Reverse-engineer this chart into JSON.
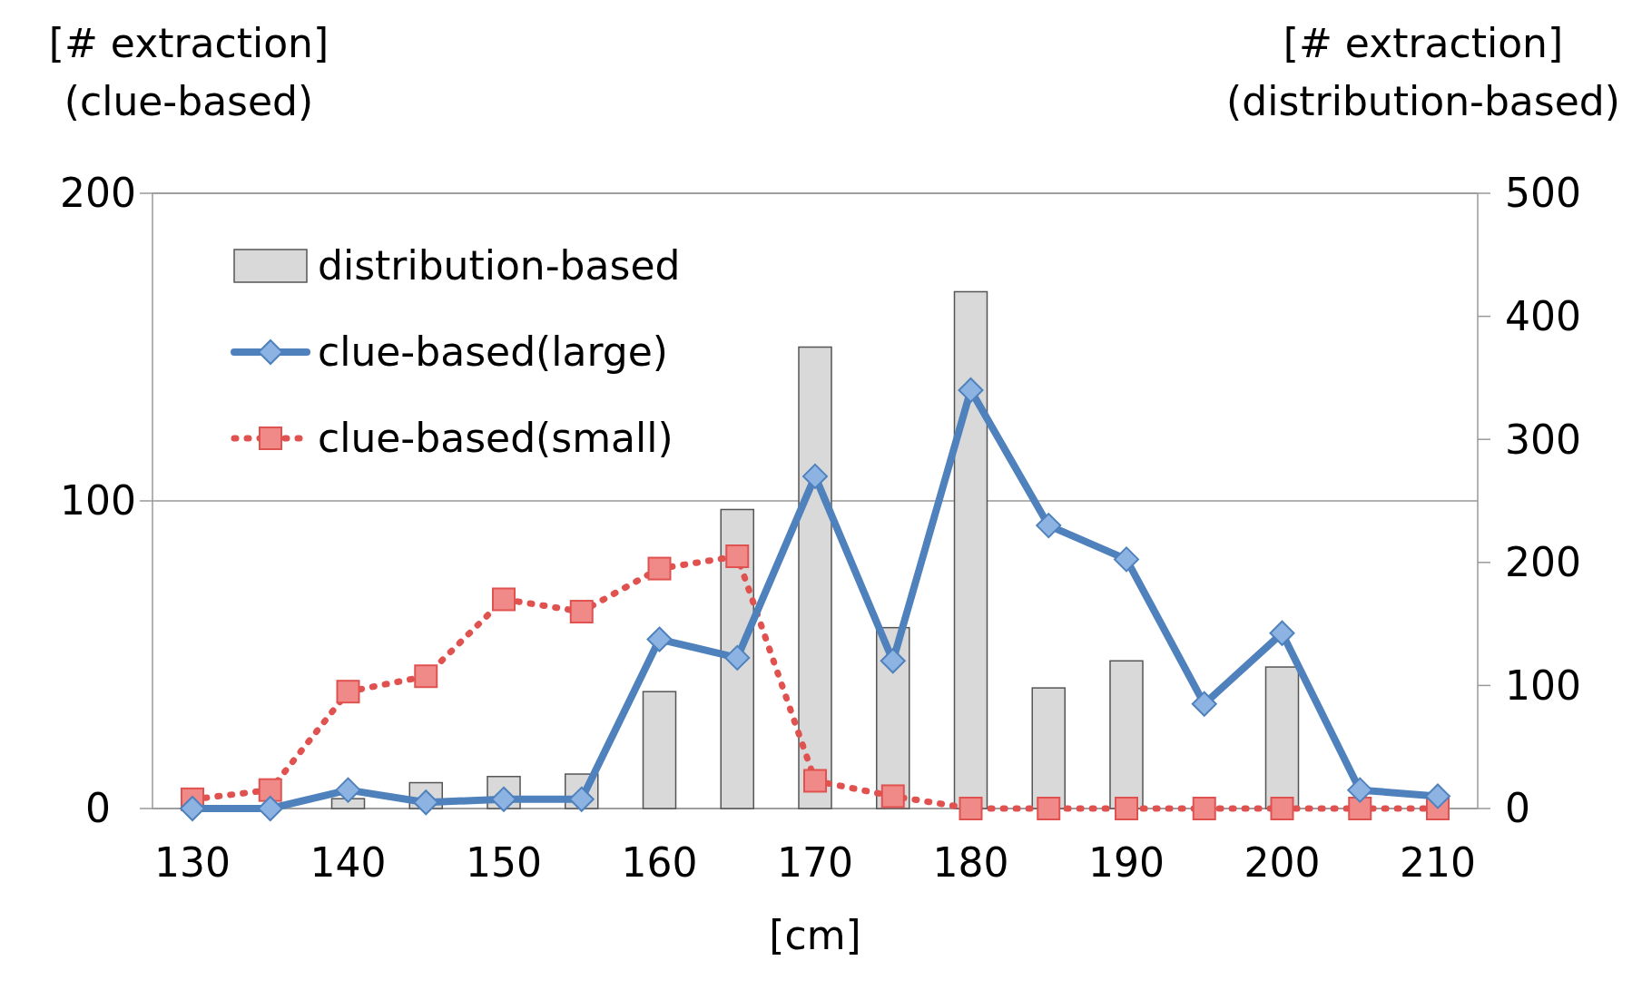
{
  "chart_data": {
    "type": "bar",
    "xlabel": "[cm]",
    "ylabel": "[# extraction]\n(clue-based)",
    "y2label": "[# extraction]\n(distribution-based)",
    "categories": [
      "130",
      null,
      "140",
      null,
      "150",
      null,
      "160",
      null,
      "170",
      null,
      "180",
      null,
      "190",
      null,
      "200",
      null,
      "210"
    ],
    "ylim": [
      0,
      200
    ],
    "yticks": [
      0,
      100,
      200
    ],
    "y2lim": [
      0,
      500
    ],
    "y2ticks": [
      0,
      100,
      200,
      300,
      400,
      500
    ],
    "grid": "y",
    "legend": "top left",
    "series": [
      {
        "name": "distribution-based",
        "axis": "y2",
        "color": "#d9d9d9",
        "values": [
          0,
          0,
          8,
          21,
          26,
          28,
          95,
          243,
          375,
          147,
          420,
          98,
          120,
          null,
          115,
          null,
          null
        ]
      },
      {
        "name": "clue-based(large)",
        "type": "line",
        "color": "#4f81bd",
        "marker": "diamond",
        "line_style": "solid",
        "values": [
          0,
          0,
          6,
          2,
          3,
          3,
          55,
          49,
          108,
          48,
          136,
          92,
          81,
          34,
          57,
          6,
          4
        ]
      },
      {
        "name": "clue-based(small)",
        "type": "line",
        "color": "#e0524f",
        "marker": "square",
        "line_style": "dotted",
        "values": [
          3,
          6,
          38,
          43,
          68,
          64,
          78,
          82,
          9,
          4,
          0,
          0,
          0,
          0,
          0,
          0,
          0
        ]
      }
    ]
  }
}
